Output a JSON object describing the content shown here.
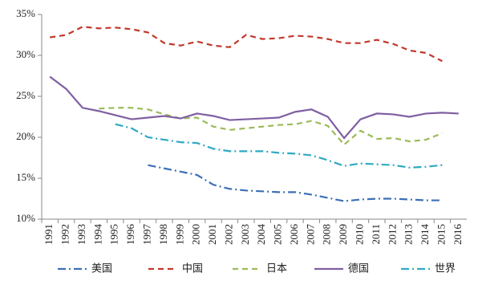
{
  "chart_data": {
    "type": "line",
    "categories": [
      "1991",
      "1992",
      "1993",
      "1994",
      "1995",
      "1996",
      "1997",
      "1998",
      "1999",
      "2000",
      "2001",
      "2002",
      "2003",
      "2004",
      "2005",
      "2006",
      "2007",
      "2008",
      "2009",
      "2010",
      "2011",
      "2012",
      "2013",
      "2014",
      "2015",
      "2016"
    ],
    "ylim": [
      10,
      35
    ],
    "yticks": [
      {
        "value": 10,
        "label": "10%"
      },
      {
        "value": 15,
        "label": "15%"
      },
      {
        "value": 20,
        "label": "20%"
      },
      {
        "value": 25,
        "label": "25%"
      },
      {
        "value": 30,
        "label": "30%"
      },
      {
        "value": 35,
        "label": "35%"
      }
    ],
    "grid": false,
    "legend": "bottom",
    "series": [
      {
        "name": "美国",
        "color": "#3b6fb6",
        "style": "dash-dot",
        "values": [
          null,
          null,
          null,
          null,
          null,
          null,
          16.6,
          16.2,
          15.8,
          15.4,
          14.2,
          13.7,
          13.5,
          13.4,
          13.3,
          13.3,
          13.0,
          12.6,
          12.2,
          12.4,
          12.5,
          12.5,
          12.4,
          12.3,
          12.3,
          null
        ]
      },
      {
        "name": "中国",
        "color": "#c0392b",
        "style": "dash",
        "values": [
          32.2,
          32.5,
          33.5,
          33.3,
          33.4,
          33.2,
          32.8,
          31.5,
          31.2,
          31.7,
          31.2,
          31.0,
          32.5,
          32.0,
          32.1,
          32.4,
          32.3,
          32.0,
          31.5,
          31.5,
          31.9,
          31.4,
          30.6,
          30.3,
          29.3,
          null
        ]
      },
      {
        "name": "日本",
        "color": "#9bbb59",
        "style": "dash",
        "values": [
          null,
          null,
          null,
          23.5,
          23.6,
          23.6,
          23.4,
          22.8,
          22.3,
          22.4,
          21.3,
          20.9,
          21.1,
          21.3,
          21.5,
          21.6,
          22.0,
          21.4,
          19.1,
          20.8,
          19.8,
          19.9,
          19.5,
          19.7,
          20.5,
          null
        ]
      },
      {
        "name": "德国",
        "color": "#7f5fa2",
        "style": "solid",
        "values": [
          27.4,
          25.9,
          23.6,
          23.2,
          22.7,
          22.2,
          22.4,
          22.6,
          22.3,
          22.9,
          22.6,
          22.1,
          22.2,
          22.3,
          22.4,
          23.1,
          23.4,
          22.5,
          19.9,
          22.2,
          22.9,
          22.8,
          22.5,
          22.9,
          23.0,
          22.9
        ]
      },
      {
        "name": "世界",
        "color": "#2fa9c4",
        "style": "dash-dot",
        "values": [
          null,
          null,
          null,
          null,
          21.6,
          21.1,
          20.0,
          19.7,
          19.4,
          19.3,
          18.6,
          18.3,
          18.3,
          18.3,
          18.1,
          18.0,
          17.8,
          17.2,
          16.5,
          16.8,
          16.7,
          16.6,
          16.3,
          16.4,
          16.6,
          null
        ]
      }
    ]
  }
}
